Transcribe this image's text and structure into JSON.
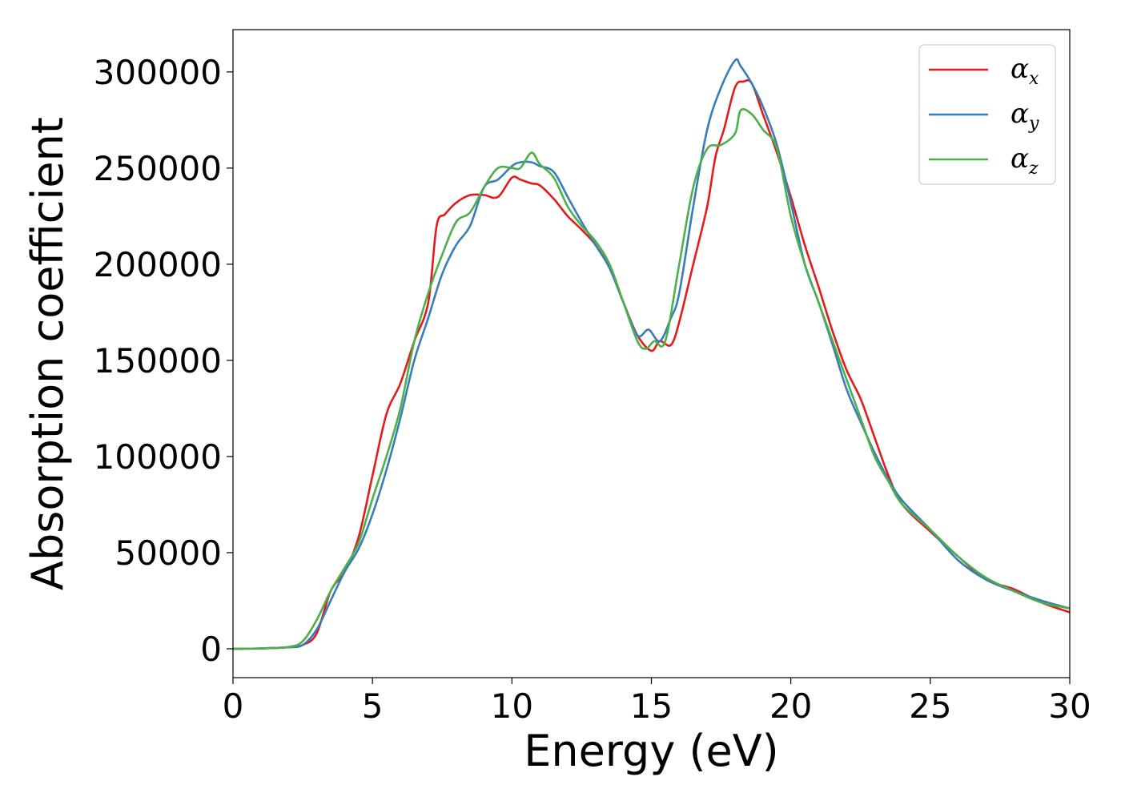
{
  "chart_data": {
    "type": "line",
    "title": "",
    "xlabel": "Energy (eV)",
    "ylabel": "Absorption coefficient",
    "xlim": [
      0,
      30
    ],
    "ylim": [
      -15000,
      322000
    ],
    "xticks": [
      0,
      5,
      10,
      15,
      20,
      25,
      30
    ],
    "yticks": [
      0,
      50000,
      100000,
      150000,
      200000,
      250000,
      300000
    ],
    "xtick_labels": [
      "0",
      "5",
      "10",
      "15",
      "20",
      "25",
      "30"
    ],
    "ytick_labels": [
      "0",
      "50000",
      "100000",
      "150000",
      "200000",
      "250000",
      "300000"
    ],
    "grid": false,
    "legend_position": "top-right",
    "series": [
      {
        "name": "α_x",
        "symbol": "α",
        "subscript": "x",
        "color": "#e41a1c",
        "x": [
          0,
          1,
          2,
          2.5,
          3,
          3.5,
          4,
          4.5,
          5,
          5.5,
          6,
          6.5,
          7,
          7.3,
          7.6,
          8,
          8.5,
          9,
          9.5,
          10,
          10.3,
          10.7,
          11,
          11.5,
          12,
          12.5,
          13,
          13.5,
          14,
          14.5,
          15,
          15.3,
          15.7,
          16,
          16.5,
          17,
          17.3,
          17.6,
          18,
          18.3,
          18.6,
          19,
          19.5,
          20,
          20.5,
          21,
          21.5,
          22,
          22.5,
          23,
          23.5,
          24,
          25,
          26,
          27,
          28,
          29,
          30
        ],
        "y": [
          0,
          200,
          800,
          2000,
          8000,
          30000,
          40000,
          58000,
          90000,
          122000,
          138000,
          160000,
          180000,
          220000,
          226000,
          232000,
          236000,
          236000,
          235000,
          245000,
          244000,
          242000,
          241000,
          234000,
          225000,
          218000,
          210000,
          198000,
          180000,
          163000,
          155000,
          160000,
          158000,
          170000,
          200000,
          230000,
          256000,
          270000,
          292000,
          295000,
          294000,
          278000,
          258000,
          235000,
          210000,
          188000,
          165000,
          145000,
          130000,
          110000,
          90000,
          75000,
          61000,
          48000,
          36000,
          31000,
          24000,
          19000
        ]
      },
      {
        "name": "α_y",
        "symbol": "α",
        "subscript": "y",
        "color": "#377eb8",
        "x": [
          0,
          1,
          2,
          2.5,
          3,
          3.5,
          4,
          4.5,
          5,
          5.5,
          6,
          6.5,
          7,
          7.5,
          8,
          8.5,
          9,
          9.5,
          10,
          10.3,
          10.7,
          11,
          11.5,
          12,
          12.5,
          13,
          13.5,
          14,
          14.5,
          14.9,
          15.3,
          15.7,
          16,
          16.5,
          17,
          17.5,
          18,
          18.2,
          18.6,
          19,
          19.5,
          20,
          20.5,
          21,
          21.5,
          22,
          22.5,
          23,
          23.5,
          24,
          25,
          26,
          27,
          28,
          29,
          30
        ],
        "y": [
          0,
          200,
          800,
          2000,
          10000,
          25000,
          40000,
          52000,
          70000,
          93000,
          120000,
          150000,
          172000,
          195000,
          210000,
          220000,
          240000,
          244000,
          251000,
          253000,
          253000,
          251000,
          248000,
          235000,
          222000,
          210000,
          198000,
          180000,
          163000,
          166000,
          160000,
          172000,
          185000,
          230000,
          270000,
          292000,
          306000,
          303000,
          294000,
          282000,
          262000,
          232000,
          200000,
          180000,
          158000,
          135000,
          118000,
          102000,
          88000,
          77000,
          62000,
          46000,
          36000,
          30000,
          25000,
          21000
        ]
      },
      {
        "name": "α_z",
        "symbol": "α",
        "subscript": "z",
        "color": "#4daf4a",
        "x": [
          0,
          1,
          2,
          2.5,
          3,
          3.5,
          4,
          4.5,
          5,
          5.5,
          6,
          6.5,
          7,
          7.5,
          8,
          8.5,
          9,
          9.5,
          10,
          10.3,
          10.7,
          11,
          11.5,
          12,
          12.5,
          13,
          13.5,
          14,
          14.5,
          14.8,
          15.1,
          15.5,
          16,
          16.5,
          17,
          17.5,
          18,
          18.2,
          18.6,
          19,
          19.5,
          20,
          20.5,
          21,
          21.5,
          22,
          22.5,
          23,
          23.5,
          24,
          25,
          26,
          27,
          28,
          29,
          30
        ],
        "y": [
          0,
          200,
          1000,
          4000,
          15000,
          30000,
          42000,
          55000,
          78000,
          100000,
          125000,
          160000,
          185000,
          205000,
          222000,
          227000,
          240000,
          250000,
          250000,
          250000,
          258000,
          252000,
          245000,
          230000,
          220000,
          212000,
          200000,
          180000,
          160000,
          156000,
          160000,
          160000,
          200000,
          240000,
          260000,
          262000,
          268000,
          280000,
          278000,
          270000,
          260000,
          225000,
          200000,
          180000,
          160000,
          140000,
          120000,
          100000,
          87000,
          75000,
          62000,
          48000,
          37000,
          30000,
          24000,
          21000
        ]
      }
    ]
  }
}
